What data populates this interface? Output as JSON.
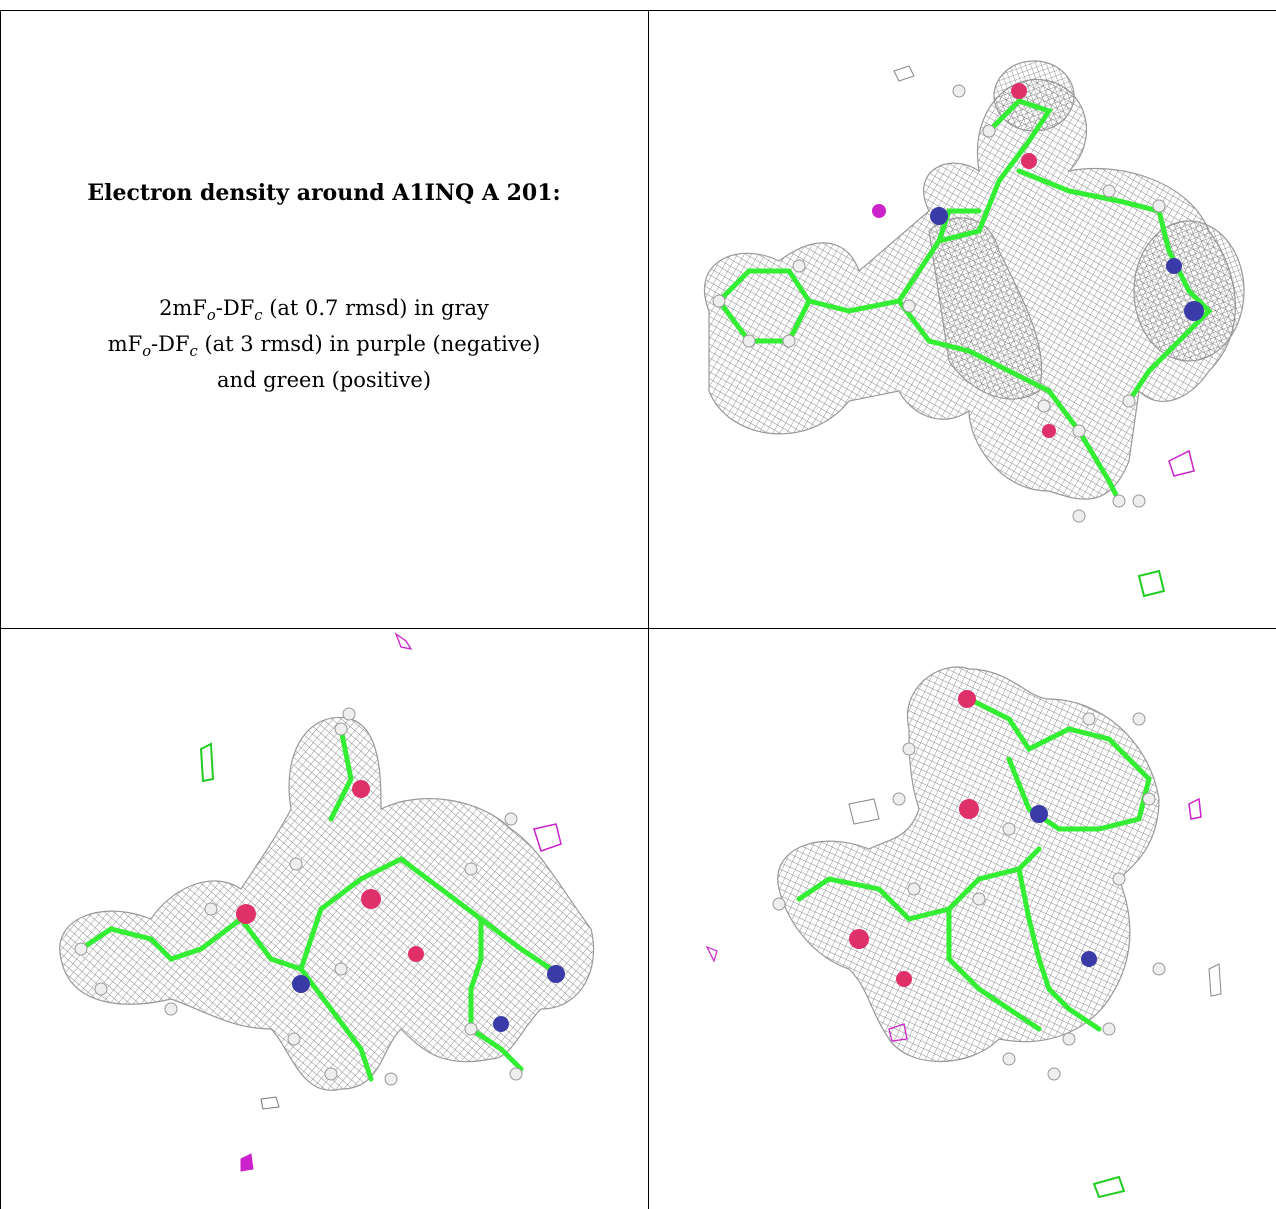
{
  "caption": {
    "title": "Electron density around A1INQ A 201:",
    "line1_a": "2mF",
    "line1_sub1": "o",
    "line1_b": "-DF",
    "line1_sub2": "c",
    "line1_c": " (at 0.7 rmsd) in gray",
    "line2_a": "mF",
    "line2_sub1": "o",
    "line2_b": "-DF",
    "line2_sub2": "c",
    "line2_c": " (at 3 rmsd) in purple (negative)",
    "line3": "and green (positive)"
  },
  "colors": {
    "mesh_gray": "#8a8a8a",
    "carbon_green": "#33ee33",
    "oxygen_red": "#e0306a",
    "nitrogen_blue": "#3a3aa8",
    "negative_purple": "#cc22cc",
    "positive_green": "#22cc22",
    "hydrogen_white": "#e8e8e8"
  },
  "panels": [
    {
      "name": "density-view-1"
    },
    {
      "name": "density-view-2"
    },
    {
      "name": "density-view-3"
    }
  ]
}
